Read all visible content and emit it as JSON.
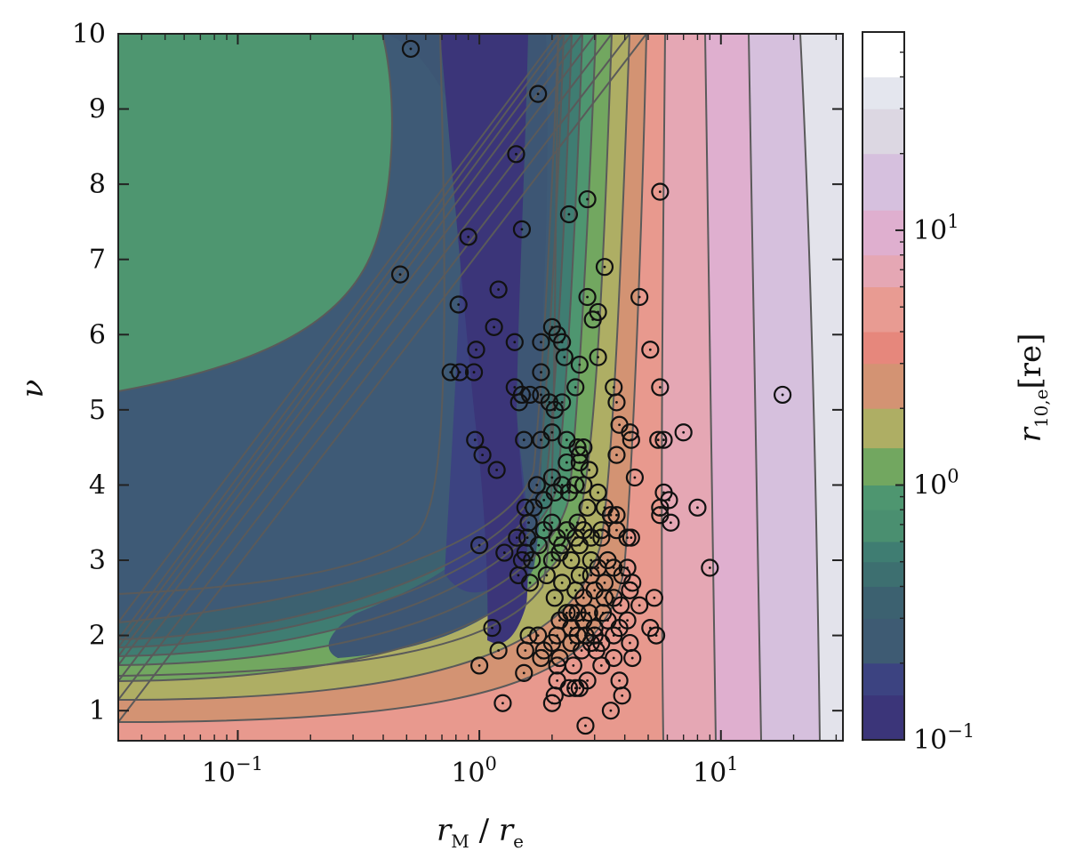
{
  "chart_data": {
    "type": "scatter",
    "plot_style": "filled contour map of r_10,e over (r_M/r_e, nu) with overplotted scatter markers",
    "xlabel": {
      "var": "r",
      "sub": "M",
      "sep": " / ",
      "var2": "r",
      "sub2": "e"
    },
    "ylabel": "ν",
    "xscale": "log",
    "xlim": [
      0.032,
      32
    ],
    "ylim": [
      0.6,
      10
    ],
    "x_ticks": [
      {
        "value": 0.1,
        "base": "10",
        "exp": "−1"
      },
      {
        "value": 1,
        "base": "10",
        "exp": "0"
      },
      {
        "value": 10,
        "base": "10",
        "exp": "1"
      }
    ],
    "y_ticks": [
      "1",
      "2",
      "3",
      "4",
      "5",
      "6",
      "7",
      "8",
      "9",
      "10"
    ],
    "colorbar": {
      "label": {
        "var": "r",
        "sub": "10,e",
        "unit": "[re]"
      },
      "scale": "log",
      "range": [
        0.1,
        60
      ],
      "ticks": [
        {
          "value": 0.1,
          "base": "10",
          "exp": "−1"
        },
        {
          "value": 1,
          "base": "10",
          "exp": "0"
        },
        {
          "value": 10,
          "base": "10",
          "exp": "1"
        }
      ],
      "levels": [
        0.1,
        0.15,
        0.2,
        0.3,
        0.4,
        0.5,
        0.6,
        0.8,
        1.0,
        1.4,
        2.0,
        3.0,
        4.0,
        6.0,
        8.0,
        12.0,
        20.0,
        30.0,
        40.0,
        60.0
      ],
      "colors": [
        "#3b3579",
        "#3c4381",
        "#3e5b73",
        "#3c6170",
        "#3d6f70",
        "#3f7d72",
        "#4a8f70",
        "#4e9670",
        "#72a760",
        "#aeae64",
        "#d39373",
        "#e6877c",
        "#e89b92",
        "#e5a7b4",
        "#dfafcf",
        "#d6c0de",
        "#dcd7e2",
        "#e4e6ee",
        "#ffffff"
      ]
    },
    "contour_regions": [
      {
        "level": "0.1–0.15",
        "color": "#3b3579"
      },
      {
        "level": "0.15–0.2",
        "color": "#3c4381"
      },
      {
        "level": "0.2–0.3",
        "color": "#3e5b73"
      },
      {
        "level": "0.3–0.4",
        "color": "#3c6170"
      },
      {
        "level": "0.4–0.5",
        "color": "#3d6f70"
      },
      {
        "level": "0.5–0.6",
        "color": "#3f7d72"
      },
      {
        "level": "0.6–0.8",
        "color": "#4a8f70"
      },
      {
        "level": "0.8–1.0",
        "color": "#4e9670"
      },
      {
        "level": "1.0–1.4",
        "color": "#72a760"
      },
      {
        "level": "1.4–2.0",
        "color": "#aeae64"
      },
      {
        "level": "2.0–3.0",
        "color": "#d39373"
      },
      {
        "level": "3.0–4.0",
        "color": "#e6877c"
      },
      {
        "level": "4.0–6.0",
        "color": "#e89b92"
      },
      {
        "level": "6.0–8.0",
        "color": "#e5a7b4"
      },
      {
        "level": "8.0–12",
        "color": "#dfafcf"
      },
      {
        "level": "12–20",
        "color": "#d6c0de"
      },
      {
        "level": "20–30",
        "color": "#dcd7e2"
      },
      {
        "level": "30–40",
        "color": "#e4e6ee"
      }
    ],
    "points": [
      [
        0.52,
        9.8
      ],
      [
        1.75,
        9.2
      ],
      [
        1.42,
        8.4
      ],
      [
        2.8,
        7.8
      ],
      [
        5.6,
        7.9
      ],
      [
        2.35,
        7.6
      ],
      [
        0.9,
        7.3
      ],
      [
        1.5,
        7.4
      ],
      [
        0.47,
        6.8
      ],
      [
        1.2,
        6.6
      ],
      [
        3.3,
        6.9
      ],
      [
        2.8,
        6.5
      ],
      [
        4.6,
        6.5
      ],
      [
        0.82,
        6.4
      ],
      [
        1.15,
        6.1
      ],
      [
        3.1,
        6.3
      ],
      [
        2.95,
        6.2
      ],
      [
        2.0,
        6.1
      ],
      [
        2.1,
        6.0
      ],
      [
        2.2,
        5.9
      ],
      [
        0.97,
        5.8
      ],
      [
        1.4,
        5.9
      ],
      [
        1.8,
        5.9
      ],
      [
        2.25,
        5.7
      ],
      [
        3.1,
        5.7
      ],
      [
        5.1,
        5.8
      ],
      [
        0.76,
        5.5
      ],
      [
        0.83,
        5.5
      ],
      [
        0.95,
        5.5
      ],
      [
        1.8,
        5.5
      ],
      [
        2.6,
        5.6
      ],
      [
        1.4,
        5.3
      ],
      [
        1.5,
        5.2
      ],
      [
        1.62,
        5.2
      ],
      [
        1.95,
        5.1
      ],
      [
        2.2,
        5.1
      ],
      [
        2.5,
        5.3
      ],
      [
        3.6,
        5.3
      ],
      [
        5.6,
        5.3
      ],
      [
        1.46,
        5.1
      ],
      [
        1.8,
        5.2
      ],
      [
        2.05,
        5.0
      ],
      [
        3.7,
        5.1
      ],
      [
        3.8,
        4.8
      ],
      [
        2.0,
        4.7
      ],
      [
        1.53,
        4.6
      ],
      [
        1.8,
        4.6
      ],
      [
        2.3,
        4.6
      ],
      [
        0.96,
        4.6
      ],
      [
        2.55,
        4.5
      ],
      [
        2.7,
        4.5
      ],
      [
        4.2,
        4.7
      ],
      [
        4.25,
        4.6
      ],
      [
        5.5,
        4.6
      ],
      [
        5.8,
        4.6
      ],
      [
        7.0,
        4.7
      ],
      [
        1.03,
        4.4
      ],
      [
        2.6,
        4.4
      ],
      [
        3.7,
        4.4
      ],
      [
        1.18,
        4.2
      ],
      [
        2.0,
        4.1
      ],
      [
        2.3,
        4.3
      ],
      [
        2.6,
        4.3
      ],
      [
        2.85,
        4.2
      ],
      [
        4.4,
        4.1
      ],
      [
        1.73,
        4.0
      ],
      [
        2.2,
        4.0
      ],
      [
        2.5,
        4.0
      ],
      [
        2.7,
        4.0
      ],
      [
        3.1,
        3.9
      ],
      [
        1.85,
        3.8
      ],
      [
        2.05,
        3.9
      ],
      [
        2.35,
        3.9
      ],
      [
        1.68,
        3.7
      ],
      [
        2.8,
        3.7
      ],
      [
        3.3,
        3.7
      ],
      [
        3.7,
        3.6
      ],
      [
        5.8,
        3.9
      ],
      [
        5.6,
        3.7
      ],
      [
        5.6,
        3.6
      ],
      [
        6.1,
        3.8
      ],
      [
        8.0,
        3.7
      ],
      [
        1.55,
        3.7
      ],
      [
        2.0,
        3.5
      ],
      [
        2.55,
        3.5
      ],
      [
        3.5,
        3.6
      ],
      [
        6.2,
        3.5
      ],
      [
        1.6,
        3.5
      ],
      [
        1.85,
        3.4
      ],
      [
        2.1,
        3.3
      ],
      [
        2.3,
        3.4
      ],
      [
        2.7,
        3.4
      ],
      [
        3.2,
        3.4
      ],
      [
        3.7,
        3.4
      ],
      [
        1.43,
        3.3
      ],
      [
        1.58,
        3.3
      ],
      [
        1.76,
        3.2
      ],
      [
        2.2,
        3.2
      ],
      [
        2.5,
        3.3
      ],
      [
        2.9,
        3.3
      ],
      [
        3.2,
        3.3
      ],
      [
        4.1,
        3.3
      ],
      [
        4.25,
        3.3
      ],
      [
        1.0,
        3.2
      ],
      [
        1.27,
        3.1
      ],
      [
        1.55,
        3.1
      ],
      [
        2.15,
        3.1
      ],
      [
        2.6,
        3.2
      ],
      [
        2.9,
        3.0
      ],
      [
        3.4,
        3.0
      ],
      [
        1.5,
        3.0
      ],
      [
        1.65,
        3.0
      ],
      [
        2.0,
        3.0
      ],
      [
        2.4,
        3.0
      ],
      [
        3.1,
        2.9
      ],
      [
        3.6,
        2.9
      ],
      [
        4.1,
        2.9
      ],
      [
        9.0,
        2.9
      ],
      [
        1.45,
        2.8
      ],
      [
        1.9,
        2.8
      ],
      [
        2.6,
        2.8
      ],
      [
        2.9,
        2.8
      ],
      [
        3.3,
        2.7
      ],
      [
        3.9,
        2.8
      ],
      [
        4.3,
        2.7
      ],
      [
        1.62,
        2.7
      ],
      [
        2.2,
        2.7
      ],
      [
        2.5,
        2.6
      ],
      [
        3.0,
        2.6
      ],
      [
        3.6,
        2.5
      ],
      [
        4.2,
        2.6
      ],
      [
        2.05,
        2.5
      ],
      [
        2.7,
        2.5
      ],
      [
        3.3,
        2.5
      ],
      [
        5.3,
        2.5
      ],
      [
        2.3,
        2.3
      ],
      [
        2.4,
        2.3
      ],
      [
        2.55,
        2.3
      ],
      [
        2.85,
        2.3
      ],
      [
        3.25,
        2.3
      ],
      [
        3.85,
        2.4
      ],
      [
        4.6,
        2.4
      ],
      [
        2.15,
        2.2
      ],
      [
        2.7,
        2.2
      ],
      [
        3.4,
        2.2
      ],
      [
        4.1,
        2.2
      ],
      [
        1.13,
        2.1
      ],
      [
        2.4,
        2.1
      ],
      [
        3.0,
        2.1
      ],
      [
        3.8,
        2.1
      ],
      [
        5.1,
        2.1
      ],
      [
        5.4,
        2.0
      ],
      [
        1.6,
        2.0
      ],
      [
        1.75,
        2.0
      ],
      [
        2.1,
        2.0
      ],
      [
        2.55,
        2.0
      ],
      [
        2.75,
        2.0
      ],
      [
        3.0,
        2.0
      ],
      [
        3.6,
        2.0
      ],
      [
        1.55,
        1.8
      ],
      [
        1.85,
        1.8
      ],
      [
        2.0,
        1.9
      ],
      [
        2.4,
        1.9
      ],
      [
        2.9,
        1.9
      ],
      [
        3.2,
        1.9
      ],
      [
        4.2,
        1.9
      ],
      [
        1.2,
        1.8
      ],
      [
        1.8,
        1.7
      ],
      [
        2.15,
        1.7
      ],
      [
        2.65,
        1.8
      ],
      [
        3.05,
        1.8
      ],
      [
        3.6,
        1.7
      ],
      [
        4.3,
        1.7
      ],
      [
        2.1,
        1.6
      ],
      [
        2.45,
        1.6
      ],
      [
        3.2,
        1.6
      ],
      [
        1.0,
        1.6
      ],
      [
        1.53,
        1.5
      ],
      [
        2.1,
        1.4
      ],
      [
        2.8,
        1.4
      ],
      [
        3.8,
        1.4
      ],
      [
        2.5,
        1.3
      ],
      [
        2.35,
        1.3
      ],
      [
        2.6,
        1.3
      ],
      [
        3.9,
        1.2
      ],
      [
        2.0,
        1.1
      ],
      [
        1.25,
        1.1
      ],
      [
        2.05,
        1.2
      ],
      [
        3.5,
        1.0
      ],
      [
        2.75,
        0.8
      ],
      [
        18.0,
        5.2
      ]
    ]
  }
}
